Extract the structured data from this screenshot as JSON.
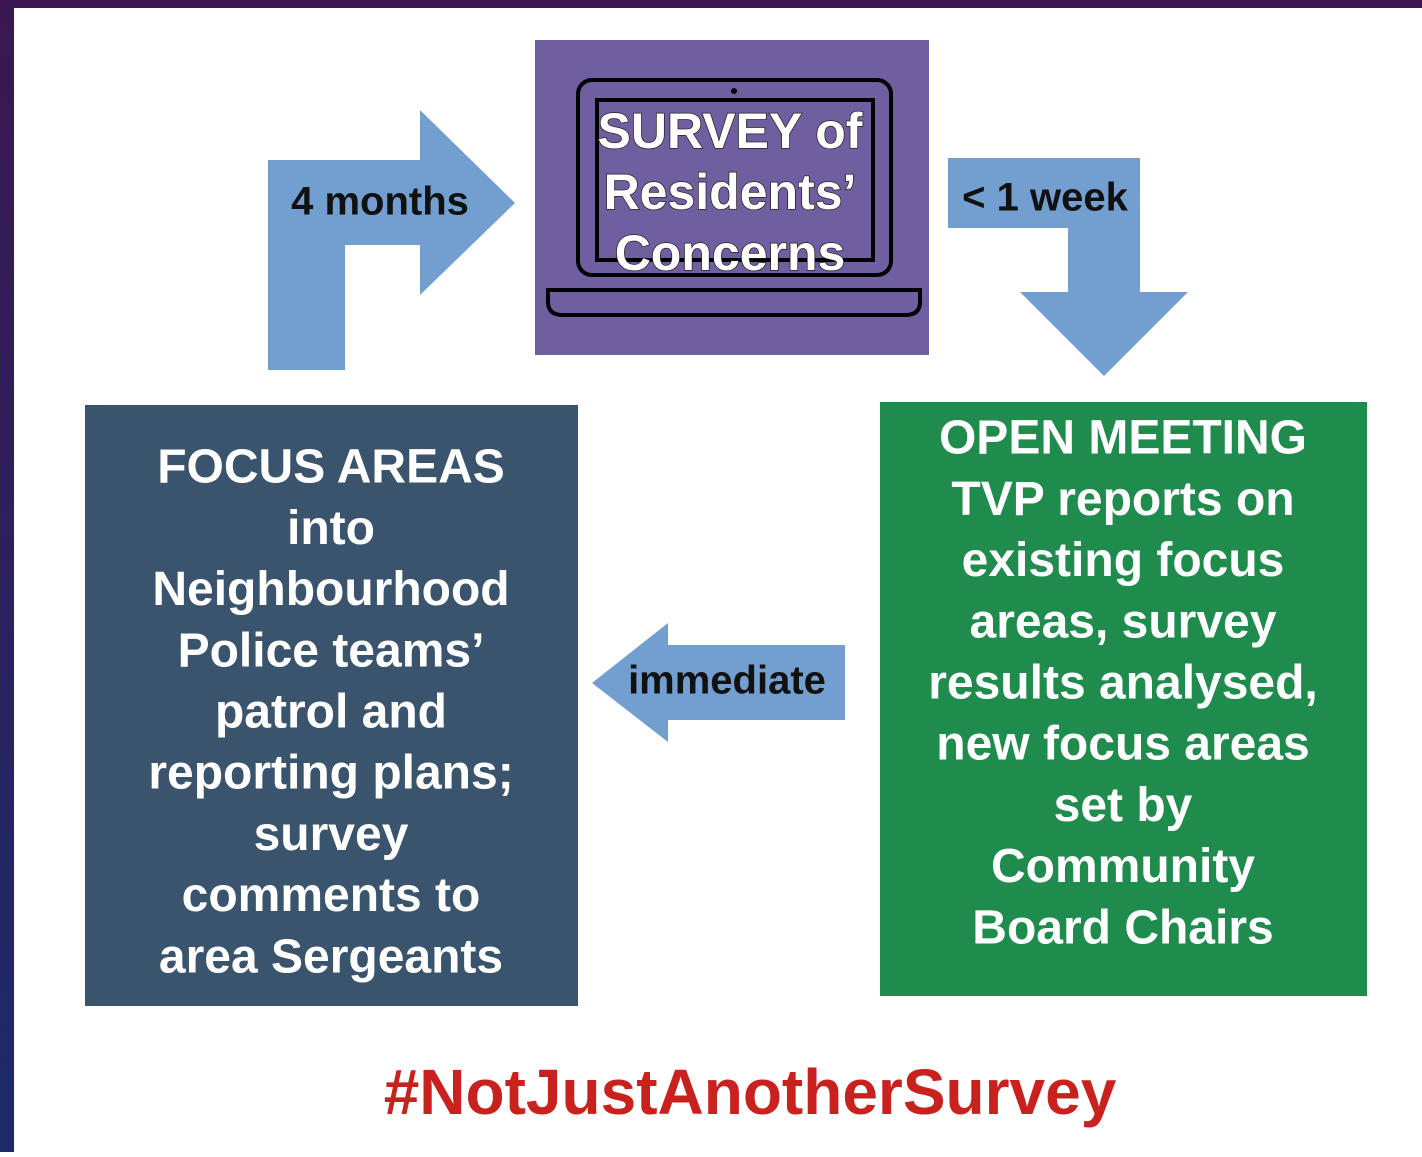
{
  "survey": {
    "lines": [
      "SURVEY of",
      "Residents’",
      "Concerns"
    ]
  },
  "arrows": {
    "to_survey": "4 months",
    "to_meeting": "< 1 week",
    "to_focus": "immediate"
  },
  "focus_areas": {
    "lines": [
      "FOCUS AREAS",
      "into",
      "Neighbourhood",
      "Police teams’",
      "patrol and",
      "reporting plans;",
      "survey",
      "comments to",
      "area Sergeants"
    ]
  },
  "open_meeting": {
    "lines": [
      "OPEN MEETING",
      "TVP reports on",
      "existing focus",
      "areas, survey",
      "results analysed,",
      "new focus areas",
      "set by",
      "Community",
      "Board Chairs"
    ]
  },
  "hashtag": "#NotJustAnotherSurvey"
}
